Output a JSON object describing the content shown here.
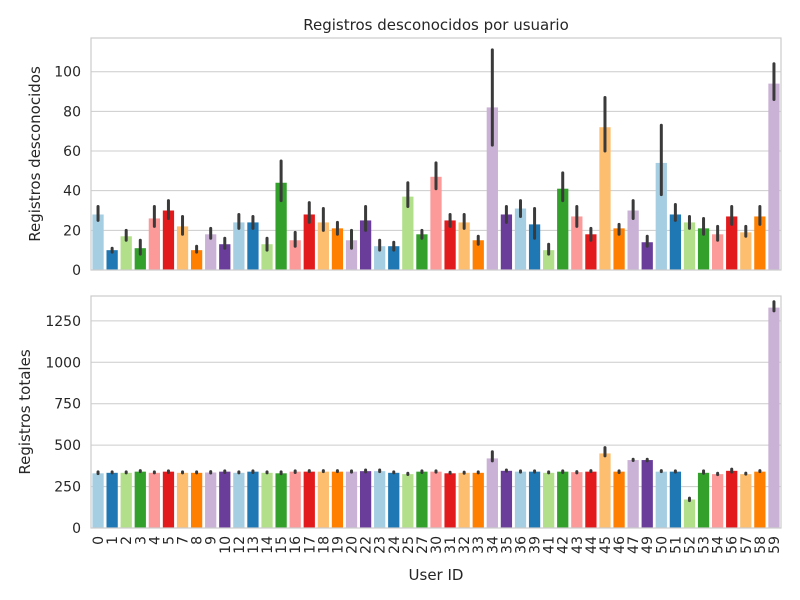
{
  "chart_data": [
    {
      "type": "bar",
      "title": "Registros desconocidos por usuario",
      "xlabel": "",
      "ylabel": "Registros desconocidos",
      "ylim": [
        0,
        117
      ],
      "yticks": [
        0,
        20,
        40,
        60,
        80,
        100
      ],
      "grid": true,
      "categories": [
        "0",
        "1",
        "2",
        "3",
        "4",
        "5",
        "7",
        "8",
        "9",
        "10",
        "12",
        "13",
        "14",
        "15",
        "16",
        "17",
        "18",
        "19",
        "20",
        "22",
        "23",
        "24",
        "25",
        "27",
        "30",
        "31",
        "32",
        "33",
        "34",
        "35",
        "36",
        "39",
        "41",
        "42",
        "43",
        "44",
        "45",
        "46",
        "47",
        "49",
        "50",
        "51",
        "52",
        "53",
        "54",
        "56",
        "57",
        "58",
        "59"
      ],
      "values": [
        28,
        10,
        17,
        11,
        26,
        30,
        22,
        10,
        18,
        13,
        24,
        24,
        13,
        44,
        15,
        28,
        24,
        21,
        15,
        25,
        12,
        12,
        37,
        18,
        47,
        25,
        24,
        15,
        82,
        28,
        31,
        23,
        10,
        41,
        27,
        18,
        72,
        21,
        30,
        14,
        54,
        28,
        24,
        21,
        18,
        27,
        19,
        27,
        94
      ],
      "error_low": [
        25,
        9,
        15,
        8,
        22,
        26,
        18,
        9,
        16,
        11,
        21,
        21,
        10,
        35,
        12,
        24,
        20,
        18,
        11,
        20,
        10,
        10,
        32,
        16,
        41,
        22,
        21,
        13,
        63,
        24,
        27,
        16,
        8,
        35,
        22,
        15,
        60,
        18,
        26,
        12,
        38,
        25,
        21,
        18,
        15,
        23,
        17,
        23,
        86
      ],
      "error_high": [
        32,
        11,
        20,
        15,
        32,
        35,
        27,
        12,
        21,
        16,
        28,
        27,
        16,
        55,
        19,
        34,
        31,
        24,
        20,
        32,
        15,
        14,
        44,
        20,
        54,
        28,
        28,
        17,
        111,
        32,
        35,
        31,
        13,
        49,
        32,
        21,
        87,
        23,
        35,
        17,
        73,
        33,
        27,
        26,
        22,
        32,
        22,
        32,
        104
      ],
      "colors": [
        "#a6cee3",
        "#1f78b4",
        "#b2df8a",
        "#33a02c",
        "#fb9a99",
        "#e31a1c",
        "#fdbf6f",
        "#ff7f00",
        "#cab2d6",
        "#6a3d9a",
        "#a6cee3",
        "#1f78b4",
        "#b2df8a",
        "#33a02c",
        "#fb9a99",
        "#e31a1c",
        "#fdbf6f",
        "#ff7f00",
        "#cab2d6",
        "#6a3d9a",
        "#a6cee3",
        "#1f78b4",
        "#b2df8a",
        "#33a02c",
        "#fb9a99",
        "#e31a1c",
        "#fdbf6f",
        "#ff7f00",
        "#cab2d6",
        "#6a3d9a",
        "#a6cee3",
        "#1f78b4",
        "#b2df8a",
        "#33a02c",
        "#fb9a99",
        "#e31a1c",
        "#fdbf6f",
        "#ff7f00",
        "#cab2d6",
        "#6a3d9a",
        "#a6cee3",
        "#1f78b4",
        "#b2df8a",
        "#33a02c",
        "#fb9a99",
        "#e31a1c",
        "#fdbf6f",
        "#ff7f00",
        "#cab2d6"
      ]
    },
    {
      "type": "bar",
      "title": "",
      "xlabel": "User ID",
      "ylabel": "Registros totales",
      "ylim": [
        0,
        1400
      ],
      "yticks": [
        0,
        250,
        500,
        750,
        1000,
        1250
      ],
      "grid": true,
      "categories": [
        "0",
        "1",
        "2",
        "3",
        "4",
        "5",
        "7",
        "8",
        "9",
        "10",
        "12",
        "13",
        "14",
        "15",
        "16",
        "17",
        "18",
        "19",
        "20",
        "22",
        "23",
        "24",
        "25",
        "27",
        "30",
        "31",
        "32",
        "33",
        "34",
        "35",
        "36",
        "39",
        "41",
        "42",
        "43",
        "44",
        "45",
        "46",
        "47",
        "49",
        "50",
        "51",
        "52",
        "53",
        "54",
        "56",
        "57",
        "58",
        "59"
      ],
      "values": [
        330,
        333,
        333,
        340,
        333,
        340,
        333,
        333,
        335,
        340,
        333,
        340,
        333,
        330,
        340,
        340,
        340,
        340,
        340,
        343,
        343,
        333,
        325,
        340,
        340,
        330,
        333,
        333,
        420,
        345,
        340,
        340,
        333,
        340,
        337,
        340,
        450,
        340,
        410,
        410,
        340,
        340,
        172,
        333,
        325,
        345,
        325,
        340,
        1330
      ],
      "error_low": [
        328,
        333,
        333,
        340,
        333,
        335,
        333,
        333,
        332,
        335,
        333,
        335,
        333,
        327,
        335,
        340,
        340,
        340,
        337,
        338,
        340,
        333,
        323,
        335,
        337,
        330,
        330,
        333,
        405,
        343,
        337,
        337,
        333,
        335,
        333,
        340,
        435,
        335,
        407,
        405,
        340,
        337,
        165,
        330,
        322,
        337,
        325,
        340,
        1310
      ],
      "error_high": [
        333,
        333,
        333,
        340,
        333,
        345,
        333,
        333,
        340,
        345,
        333,
        345,
        333,
        333,
        345,
        340,
        340,
        340,
        345,
        350,
        350,
        333,
        330,
        345,
        345,
        330,
        337,
        333,
        460,
        350,
        345,
        345,
        333,
        345,
        340,
        340,
        485,
        345,
        415,
        415,
        340,
        345,
        180,
        345,
        330,
        355,
        325,
        340,
        1365
      ],
      "colors": [
        "#a6cee3",
        "#1f78b4",
        "#b2df8a",
        "#33a02c",
        "#fb9a99",
        "#e31a1c",
        "#fdbf6f",
        "#ff7f00",
        "#cab2d6",
        "#6a3d9a",
        "#a6cee3",
        "#1f78b4",
        "#b2df8a",
        "#33a02c",
        "#fb9a99",
        "#e31a1c",
        "#fdbf6f",
        "#ff7f00",
        "#cab2d6",
        "#6a3d9a",
        "#a6cee3",
        "#1f78b4",
        "#b2df8a",
        "#33a02c",
        "#fb9a99",
        "#e31a1c",
        "#fdbf6f",
        "#ff7f00",
        "#cab2d6",
        "#6a3d9a",
        "#a6cee3",
        "#1f78b4",
        "#b2df8a",
        "#33a02c",
        "#fb9a99",
        "#e31a1c",
        "#fdbf6f",
        "#ff7f00",
        "#cab2d6",
        "#6a3d9a",
        "#a6cee3",
        "#1f78b4",
        "#b2df8a",
        "#33a02c",
        "#fb9a99",
        "#e31a1c",
        "#fdbf6f",
        "#ff7f00",
        "#cab2d6"
      ]
    }
  ]
}
